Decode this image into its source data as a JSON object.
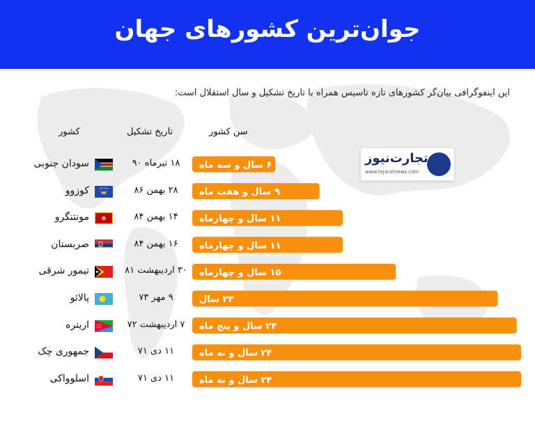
{
  "header": {
    "title": "جوان‌ترین کشورهای جهان"
  },
  "intro": "این اینفوگرافی بیان‌گر کشورهای تازه تاسیس همراه با تاریخ تشکیل و سال استقلال است:",
  "columns": {
    "country": "کشور",
    "date": "تاریخ تشکیل",
    "age": "سن کشور"
  },
  "logo": {
    "name": "تجارت‌نیوز",
    "url": "www.tejaratnews.com"
  },
  "colors": {
    "header": "#1231f0",
    "bar": "#f7900f",
    "bar_text": "#ffffff"
  },
  "chart_data": {
    "type": "bar",
    "orientation": "horizontal",
    "categories": [
      "سودان جنوبی",
      "کوزوو",
      "مونتنگرو",
      "صربستان",
      "تیمور شرقی",
      "پالائو",
      "اریتره",
      "جمهوری چک",
      "اسلوواکی"
    ],
    "dates": [
      "۱۸ تیرماه ۹۰",
      "۲۸ بهمن ۸۶",
      "۱۴ بهمن ۸۴",
      "۱۶ بهمن ۸۴",
      "۳۰ اردیبهشت ۸۱",
      "۹ مهر ۷۳",
      "۷ اردیبهشت ۷۲",
      "۱۱ دی ۷۱",
      "۱۱ دی ۷۱"
    ],
    "age_labels": [
      "۶ سال و سه ماه",
      "۹ سال و هفت ماه",
      "۱۱ سال و چهارماه",
      "۱۱ سال و چهارماه",
      "۱۵ سال و چهارماه",
      "۲۳ سال",
      "۲۴ سال و پنج ماه",
      "۲۴ سال و نه ماه",
      "۲۴ سال و نه ماه"
    ],
    "values": [
      6.25,
      9.58,
      11.33,
      11.33,
      15.33,
      23,
      24.42,
      24.75,
      24.75
    ],
    "flags": [
      "south-sudan-flag",
      "kosovo-flag",
      "montenegro-flag",
      "serbia-flag",
      "east-timor-flag",
      "palau-flag",
      "eritrea-flag",
      "czech-flag",
      "slovakia-flag"
    ]
  }
}
